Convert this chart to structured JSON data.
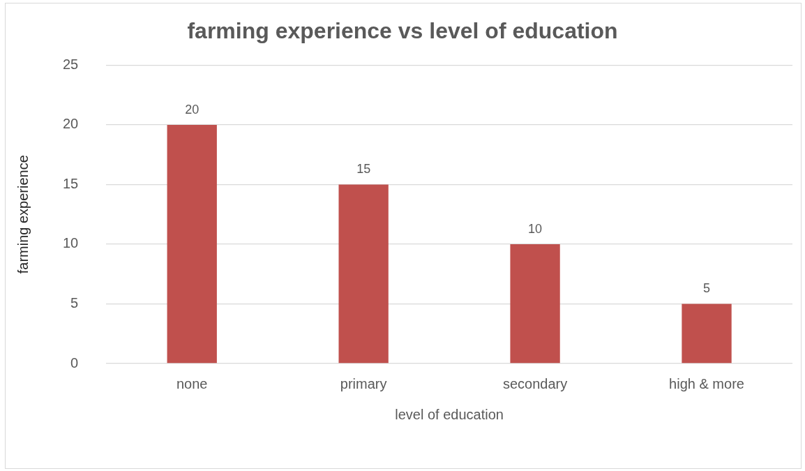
{
  "chart_data": {
    "type": "bar",
    "title": "farming experience vs level of education",
    "xlabel": "level of education",
    "ylabel": "farming experience",
    "categories": [
      "none",
      "primary",
      "secondary",
      "high & more"
    ],
    "series": [
      {
        "color": "#c0504d",
        "values": [
          20,
          15,
          10,
          5
        ]
      }
    ],
    "ylim": [
      0,
      25
    ],
    "yticks": [
      0,
      5,
      10,
      15,
      20,
      25
    ],
    "grid": "y",
    "data_labels": true
  }
}
